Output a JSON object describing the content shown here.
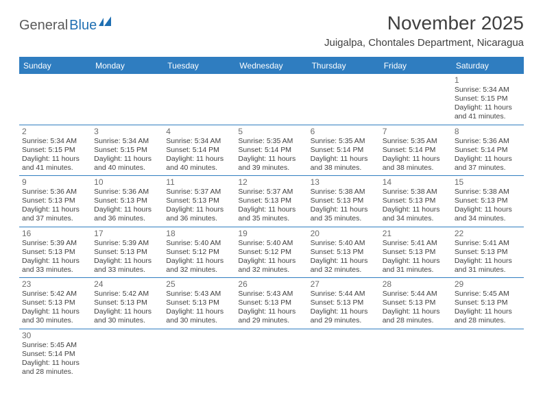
{
  "logo": {
    "part1": "General",
    "part2": "Blue"
  },
  "title": "November 2025",
  "location": "Juigalpa, Chontales Department, Nicaragua",
  "colors": {
    "header_bg": "#2f7dc0",
    "header_text": "#ffffff",
    "border": "#2f7dc0",
    "daynum": "#6b6b6b",
    "body_text": "#404040",
    "logo_gray": "#5a5a5a",
    "logo_blue": "#1f6fb2"
  },
  "dow": [
    "Sunday",
    "Monday",
    "Tuesday",
    "Wednesday",
    "Thursday",
    "Friday",
    "Saturday"
  ],
  "weeks": [
    [
      null,
      null,
      null,
      null,
      null,
      null,
      {
        "n": "1",
        "sr": "Sunrise: 5:34 AM",
        "ss": "Sunset: 5:15 PM",
        "d1": "Daylight: 11 hours",
        "d2": "and 41 minutes."
      }
    ],
    [
      {
        "n": "2",
        "sr": "Sunrise: 5:34 AM",
        "ss": "Sunset: 5:15 PM",
        "d1": "Daylight: 11 hours",
        "d2": "and 41 minutes."
      },
      {
        "n": "3",
        "sr": "Sunrise: 5:34 AM",
        "ss": "Sunset: 5:15 PM",
        "d1": "Daylight: 11 hours",
        "d2": "and 40 minutes."
      },
      {
        "n": "4",
        "sr": "Sunrise: 5:34 AM",
        "ss": "Sunset: 5:14 PM",
        "d1": "Daylight: 11 hours",
        "d2": "and 40 minutes."
      },
      {
        "n": "5",
        "sr": "Sunrise: 5:35 AM",
        "ss": "Sunset: 5:14 PM",
        "d1": "Daylight: 11 hours",
        "d2": "and 39 minutes."
      },
      {
        "n": "6",
        "sr": "Sunrise: 5:35 AM",
        "ss": "Sunset: 5:14 PM",
        "d1": "Daylight: 11 hours",
        "d2": "and 38 minutes."
      },
      {
        "n": "7",
        "sr": "Sunrise: 5:35 AM",
        "ss": "Sunset: 5:14 PM",
        "d1": "Daylight: 11 hours",
        "d2": "and 38 minutes."
      },
      {
        "n": "8",
        "sr": "Sunrise: 5:36 AM",
        "ss": "Sunset: 5:14 PM",
        "d1": "Daylight: 11 hours",
        "d2": "and 37 minutes."
      }
    ],
    [
      {
        "n": "9",
        "sr": "Sunrise: 5:36 AM",
        "ss": "Sunset: 5:13 PM",
        "d1": "Daylight: 11 hours",
        "d2": "and 37 minutes."
      },
      {
        "n": "10",
        "sr": "Sunrise: 5:36 AM",
        "ss": "Sunset: 5:13 PM",
        "d1": "Daylight: 11 hours",
        "d2": "and 36 minutes."
      },
      {
        "n": "11",
        "sr": "Sunrise: 5:37 AM",
        "ss": "Sunset: 5:13 PM",
        "d1": "Daylight: 11 hours",
        "d2": "and 36 minutes."
      },
      {
        "n": "12",
        "sr": "Sunrise: 5:37 AM",
        "ss": "Sunset: 5:13 PM",
        "d1": "Daylight: 11 hours",
        "d2": "and 35 minutes."
      },
      {
        "n": "13",
        "sr": "Sunrise: 5:38 AM",
        "ss": "Sunset: 5:13 PM",
        "d1": "Daylight: 11 hours",
        "d2": "and 35 minutes."
      },
      {
        "n": "14",
        "sr": "Sunrise: 5:38 AM",
        "ss": "Sunset: 5:13 PM",
        "d1": "Daylight: 11 hours",
        "d2": "and 34 minutes."
      },
      {
        "n": "15",
        "sr": "Sunrise: 5:38 AM",
        "ss": "Sunset: 5:13 PM",
        "d1": "Daylight: 11 hours",
        "d2": "and 34 minutes."
      }
    ],
    [
      {
        "n": "16",
        "sr": "Sunrise: 5:39 AM",
        "ss": "Sunset: 5:13 PM",
        "d1": "Daylight: 11 hours",
        "d2": "and 33 minutes."
      },
      {
        "n": "17",
        "sr": "Sunrise: 5:39 AM",
        "ss": "Sunset: 5:13 PM",
        "d1": "Daylight: 11 hours",
        "d2": "and 33 minutes."
      },
      {
        "n": "18",
        "sr": "Sunrise: 5:40 AM",
        "ss": "Sunset: 5:12 PM",
        "d1": "Daylight: 11 hours",
        "d2": "and 32 minutes."
      },
      {
        "n": "19",
        "sr": "Sunrise: 5:40 AM",
        "ss": "Sunset: 5:12 PM",
        "d1": "Daylight: 11 hours",
        "d2": "and 32 minutes."
      },
      {
        "n": "20",
        "sr": "Sunrise: 5:40 AM",
        "ss": "Sunset: 5:13 PM",
        "d1": "Daylight: 11 hours",
        "d2": "and 32 minutes."
      },
      {
        "n": "21",
        "sr": "Sunrise: 5:41 AM",
        "ss": "Sunset: 5:13 PM",
        "d1": "Daylight: 11 hours",
        "d2": "and 31 minutes."
      },
      {
        "n": "22",
        "sr": "Sunrise: 5:41 AM",
        "ss": "Sunset: 5:13 PM",
        "d1": "Daylight: 11 hours",
        "d2": "and 31 minutes."
      }
    ],
    [
      {
        "n": "23",
        "sr": "Sunrise: 5:42 AM",
        "ss": "Sunset: 5:13 PM",
        "d1": "Daylight: 11 hours",
        "d2": "and 30 minutes."
      },
      {
        "n": "24",
        "sr": "Sunrise: 5:42 AM",
        "ss": "Sunset: 5:13 PM",
        "d1": "Daylight: 11 hours",
        "d2": "and 30 minutes."
      },
      {
        "n": "25",
        "sr": "Sunrise: 5:43 AM",
        "ss": "Sunset: 5:13 PM",
        "d1": "Daylight: 11 hours",
        "d2": "and 30 minutes."
      },
      {
        "n": "26",
        "sr": "Sunrise: 5:43 AM",
        "ss": "Sunset: 5:13 PM",
        "d1": "Daylight: 11 hours",
        "d2": "and 29 minutes."
      },
      {
        "n": "27",
        "sr": "Sunrise: 5:44 AM",
        "ss": "Sunset: 5:13 PM",
        "d1": "Daylight: 11 hours",
        "d2": "and 29 minutes."
      },
      {
        "n": "28",
        "sr": "Sunrise: 5:44 AM",
        "ss": "Sunset: 5:13 PM",
        "d1": "Daylight: 11 hours",
        "d2": "and 28 minutes."
      },
      {
        "n": "29",
        "sr": "Sunrise: 5:45 AM",
        "ss": "Sunset: 5:13 PM",
        "d1": "Daylight: 11 hours",
        "d2": "and 28 minutes."
      }
    ],
    [
      {
        "n": "30",
        "sr": "Sunrise: 5:45 AM",
        "ss": "Sunset: 5:14 PM",
        "d1": "Daylight: 11 hours",
        "d2": "and 28 minutes."
      },
      null,
      null,
      null,
      null,
      null,
      null
    ]
  ]
}
